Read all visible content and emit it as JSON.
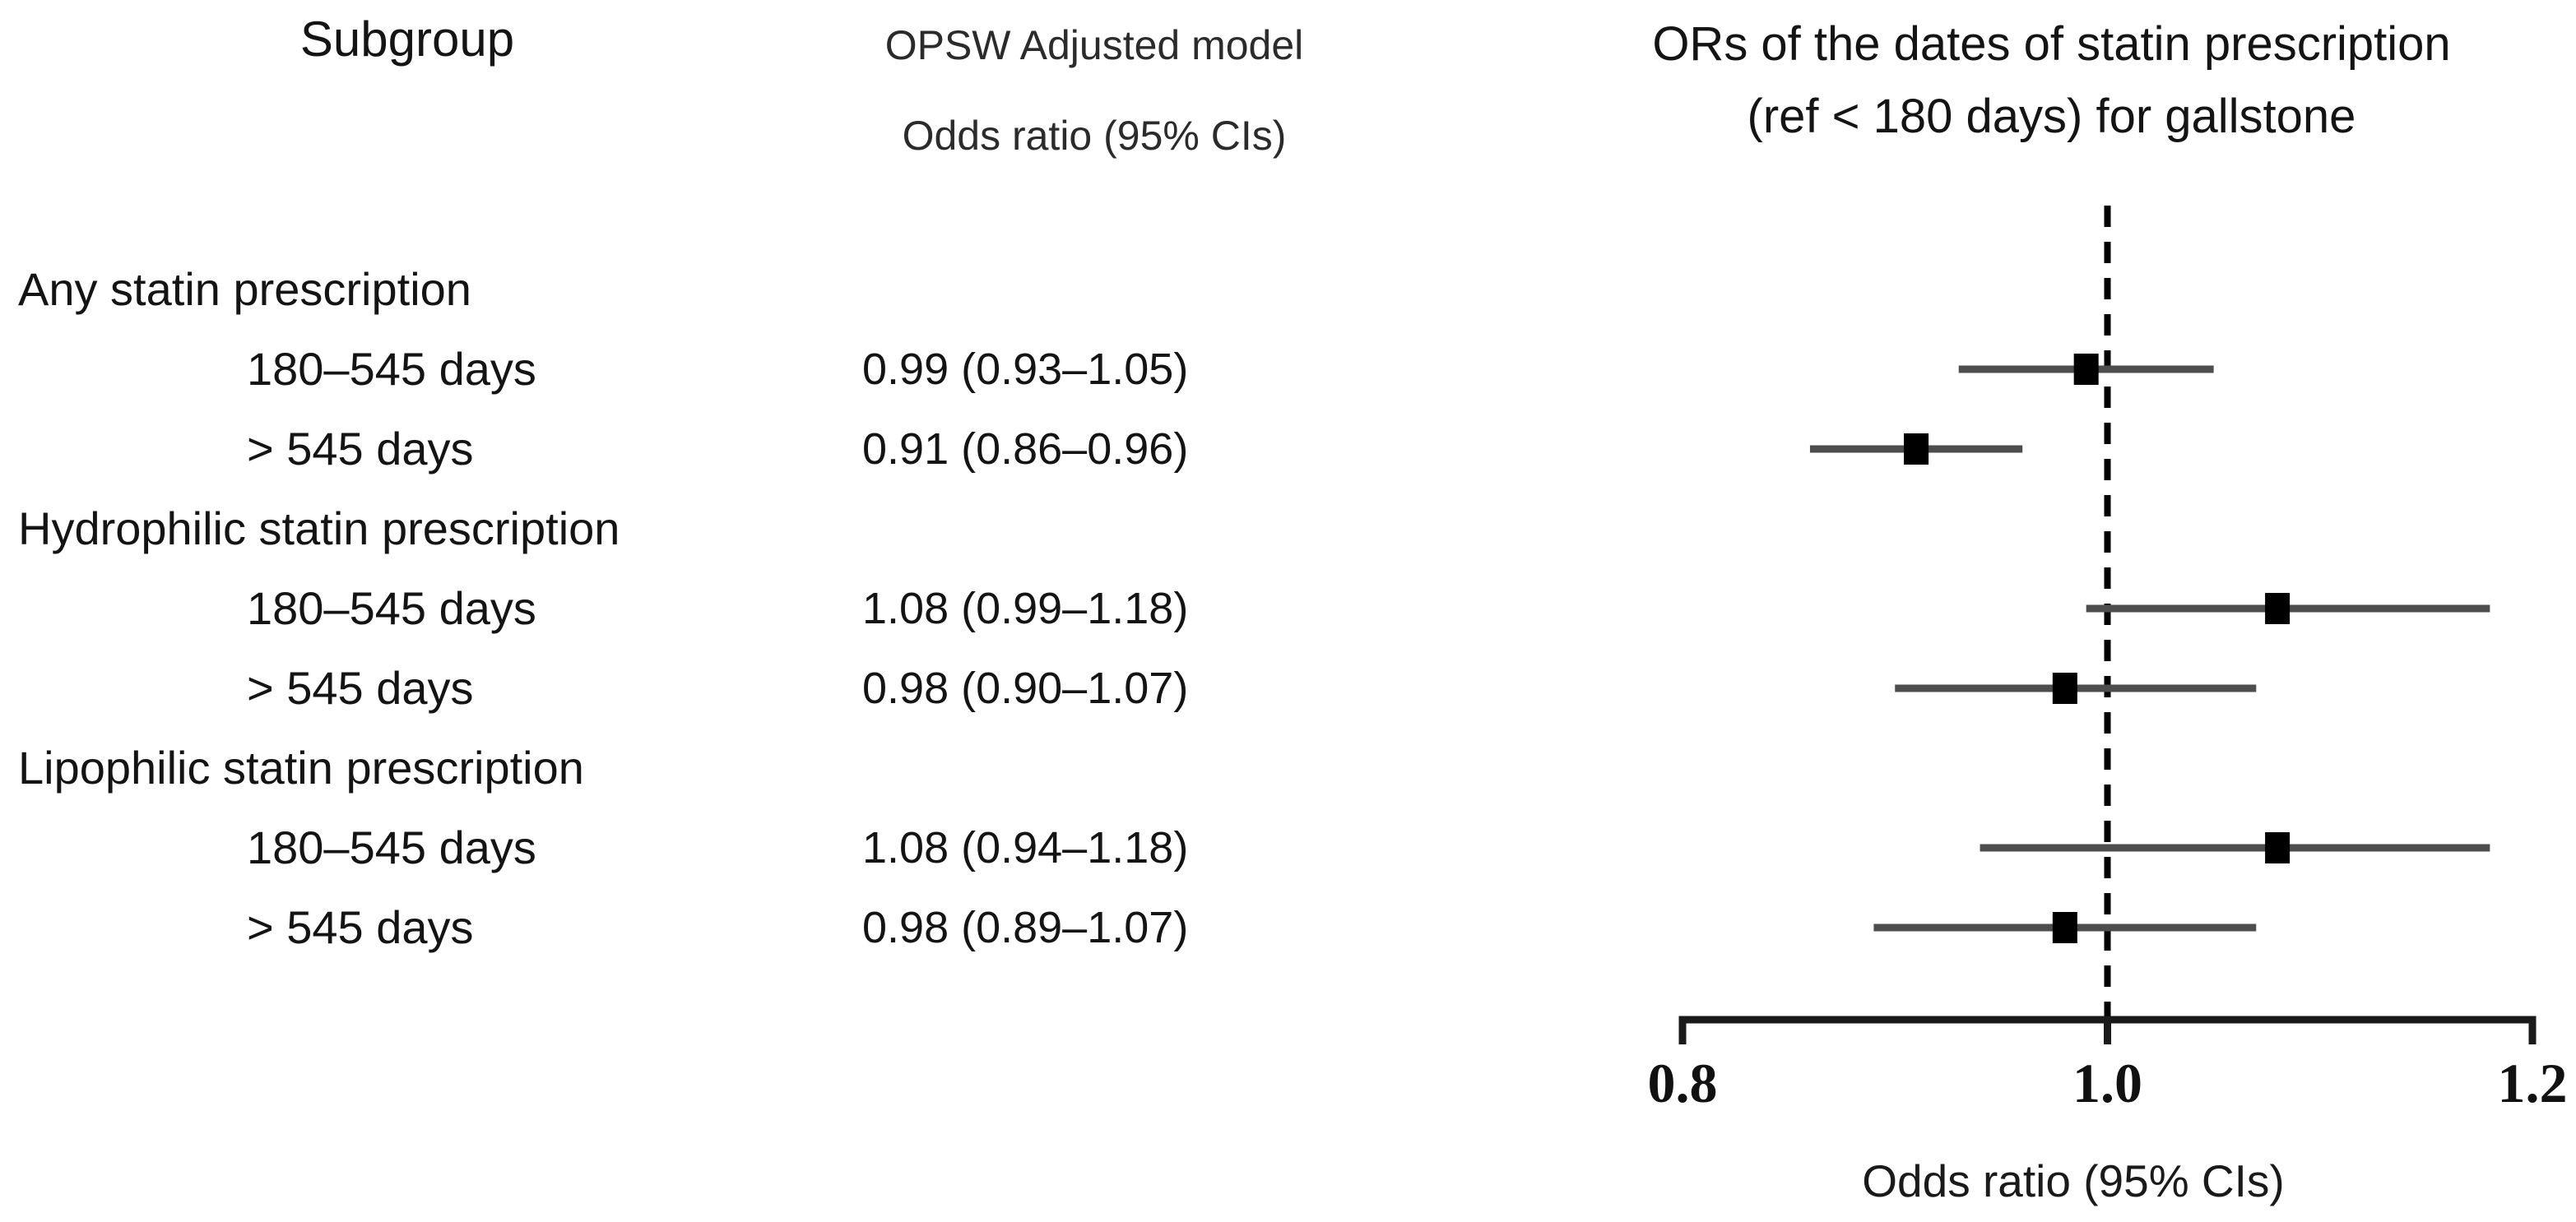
{
  "headers": {
    "subgroup": "Subgroup",
    "model_line1": "OPSW Adjusted model",
    "model_line2": "Odds ratio (95% CIs)"
  },
  "table": {
    "rows": [
      {
        "label": "Any statin prescription",
        "value": "",
        "indent": false
      },
      {
        "label": "180–545 days",
        "value": "0.99 (0.93–1.05)",
        "indent": true
      },
      {
        "label": "> 545 days",
        "value": "0.91 (0.86–0.96)",
        "indent": true
      },
      {
        "label": "Hydrophilic statin prescription",
        "value": "",
        "indent": false
      },
      {
        "label": "180–545 days",
        "value": "1.08 (0.99–1.18)",
        "indent": true
      },
      {
        "label": "> 545 days",
        "value": "0.98 (0.90–1.07)",
        "indent": true
      },
      {
        "label": "Lipophilic statin prescription",
        "value": "",
        "indent": false
      },
      {
        "label": "180–545 days",
        "value": "1.08 (0.94–1.18)",
        "indent": true
      },
      {
        "label": "> 545 days",
        "value": "0.98 (0.89–1.07)",
        "indent": true
      }
    ]
  },
  "chart_data": {
    "type": "scatter",
    "subtype": "forest-plot",
    "title_line1": "ORs of the dates of statin prescription",
    "title_line2": "(ref < 180 days) for gallstone",
    "xlabel": "Odds ratio (95% CIs)",
    "xlim": [
      0.8,
      1.2
    ],
    "xticks": [
      {
        "value": 0.8,
        "label": "0.8"
      },
      {
        "value": 1.0,
        "label": "1.0"
      },
      {
        "value": 1.2,
        "label": "1.2"
      }
    ],
    "ref_line": 1.0,
    "ref_line_style": "dashed",
    "marker": "filled-square",
    "marker_color": "#000000",
    "ci_color": "#4d4d4d",
    "axis_color": "#1a1a1a",
    "grid": false,
    "rows": [
      {
        "subgroup": "Any statin prescription / 180–545 days",
        "or": 0.99,
        "ci_low": 0.93,
        "ci_high": 1.05,
        "grid_row": 2
      },
      {
        "subgroup": "Any statin prescription / > 545 days",
        "or": 0.91,
        "ci_low": 0.86,
        "ci_high": 0.96,
        "grid_row": 3
      },
      {
        "subgroup": "Hydrophilic statin prescription / 180–545 days",
        "or": 1.08,
        "ci_low": 0.99,
        "ci_high": 1.18,
        "grid_row": 5
      },
      {
        "subgroup": "Hydrophilic statin prescription / > 545 days",
        "or": 0.98,
        "ci_low": 0.9,
        "ci_high": 1.07,
        "grid_row": 6
      },
      {
        "subgroup": "Lipophilic statin prescription / 180–545 days",
        "or": 1.08,
        "ci_low": 0.94,
        "ci_high": 1.18,
        "grid_row": 8
      },
      {
        "subgroup": "Lipophilic statin prescription / > 545 days",
        "or": 0.98,
        "ci_low": 0.89,
        "ci_high": 1.07,
        "grid_row": 9
      }
    ]
  }
}
